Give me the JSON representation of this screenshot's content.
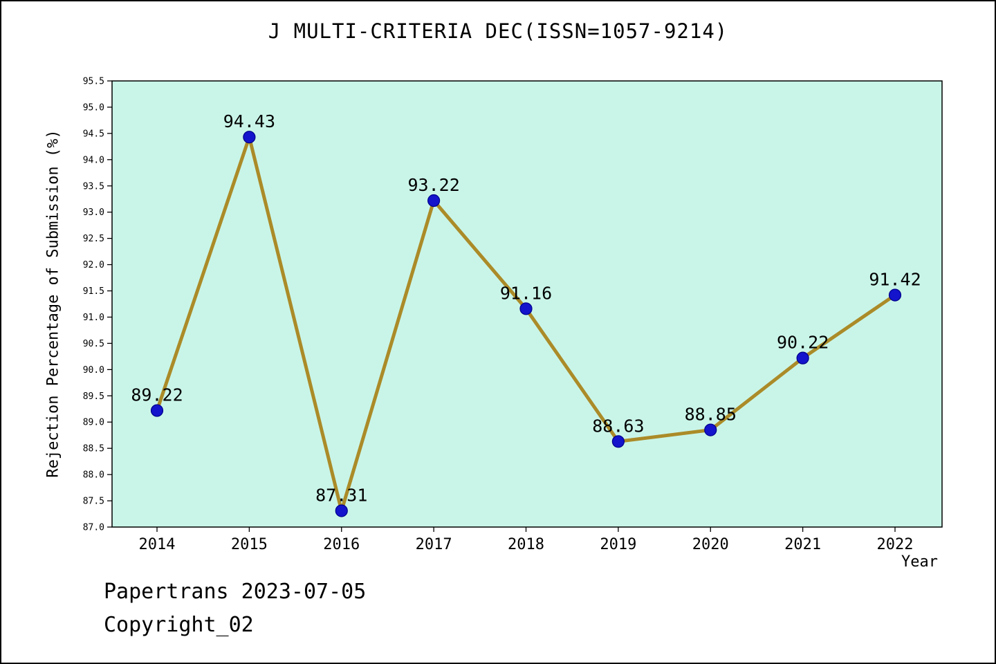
{
  "chart_data": {
    "type": "line",
    "title": "J MULTI-CRITERIA DEC(ISSN=1057-9214)",
    "xlabel": "Year",
    "ylabel": "Rejection Percentage of Submission (%)",
    "x": [
      2014,
      2015,
      2016,
      2017,
      2018,
      2019,
      2020,
      2021,
      2022
    ],
    "values": [
      89.22,
      94.43,
      87.31,
      93.22,
      91.16,
      88.63,
      88.85,
      90.22,
      91.42
    ],
    "ylim": [
      87.0,
      95.5
    ],
    "ytick_step": 0.5,
    "grid": false,
    "legend": "none",
    "colors": {
      "line": "#ab8b28",
      "marker": "#1414cc",
      "marker_edge": "#00008b",
      "plot_bg": "#c9f5e8",
      "frame": "#000000"
    }
  },
  "footer": {
    "line1": "Papertrans 2023-07-05",
    "line2": "Copyright_02"
  }
}
